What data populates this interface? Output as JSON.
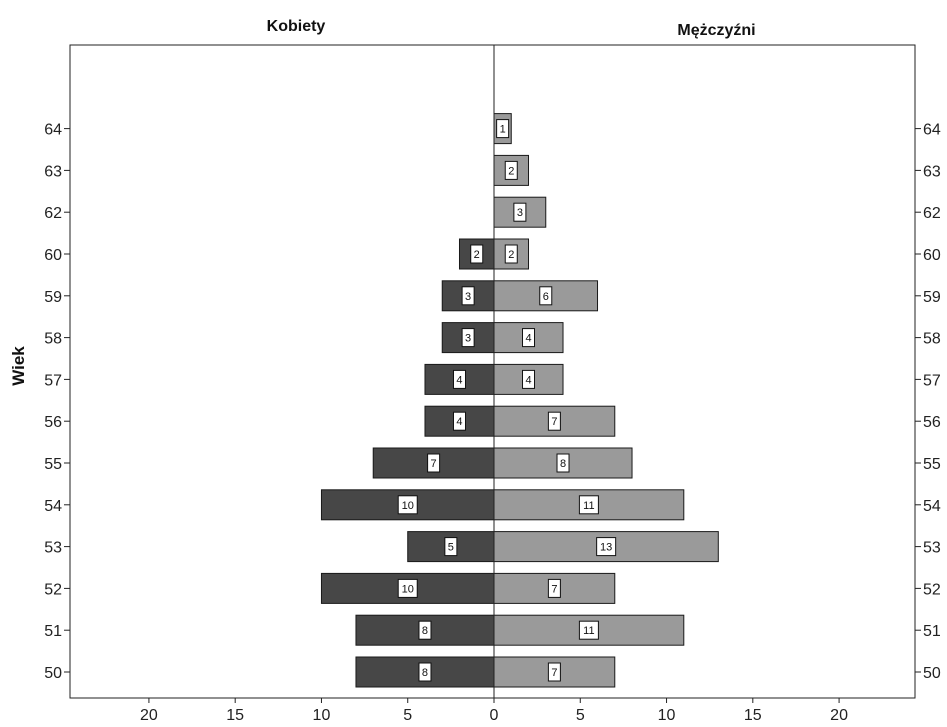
{
  "chart_data": {
    "type": "bar",
    "orientation": "horizontal",
    "layout": "population-pyramid",
    "categories": [
      "50",
      "51",
      "52",
      "53",
      "54",
      "55",
      "56",
      "57",
      "58",
      "59",
      "60",
      "62",
      "63",
      "64"
    ],
    "series": [
      {
        "name": "Kobiety",
        "side": "left",
        "color": "#474747",
        "values": [
          8,
          8,
          10,
          5,
          10,
          7,
          4,
          4,
          3,
          3,
          2,
          null,
          null,
          null
        ]
      },
      {
        "name": "Mężczyźni",
        "side": "right",
        "color": "#9a9a9a",
        "values": [
          7,
          11,
          7,
          13,
          11,
          8,
          7,
          4,
          4,
          6,
          2,
          3,
          2,
          1
        ]
      }
    ],
    "ylabel": "Wiek",
    "x_ticks": [
      "20",
      "15",
      "10",
      "5",
      "0",
      "5",
      "10",
      "15",
      "20"
    ],
    "xlim": [
      -24,
      24
    ],
    "grid": false,
    "data_labels": true
  }
}
